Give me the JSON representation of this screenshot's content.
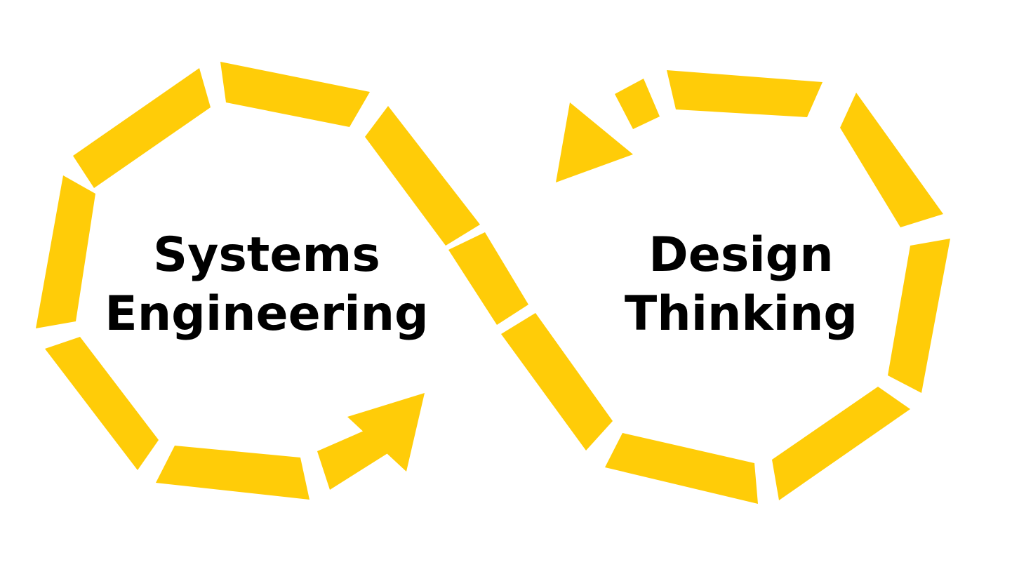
{
  "diagram": {
    "accent_color": "#FFCC08",
    "left_loop": {
      "label_line1": "Systems",
      "label_line2": "Engineering"
    },
    "right_loop": {
      "label_line1": "Design",
      "label_line2": "Thinking"
    },
    "icons": [
      "arrow-head-icon",
      "arrow-head-icon"
    ]
  }
}
